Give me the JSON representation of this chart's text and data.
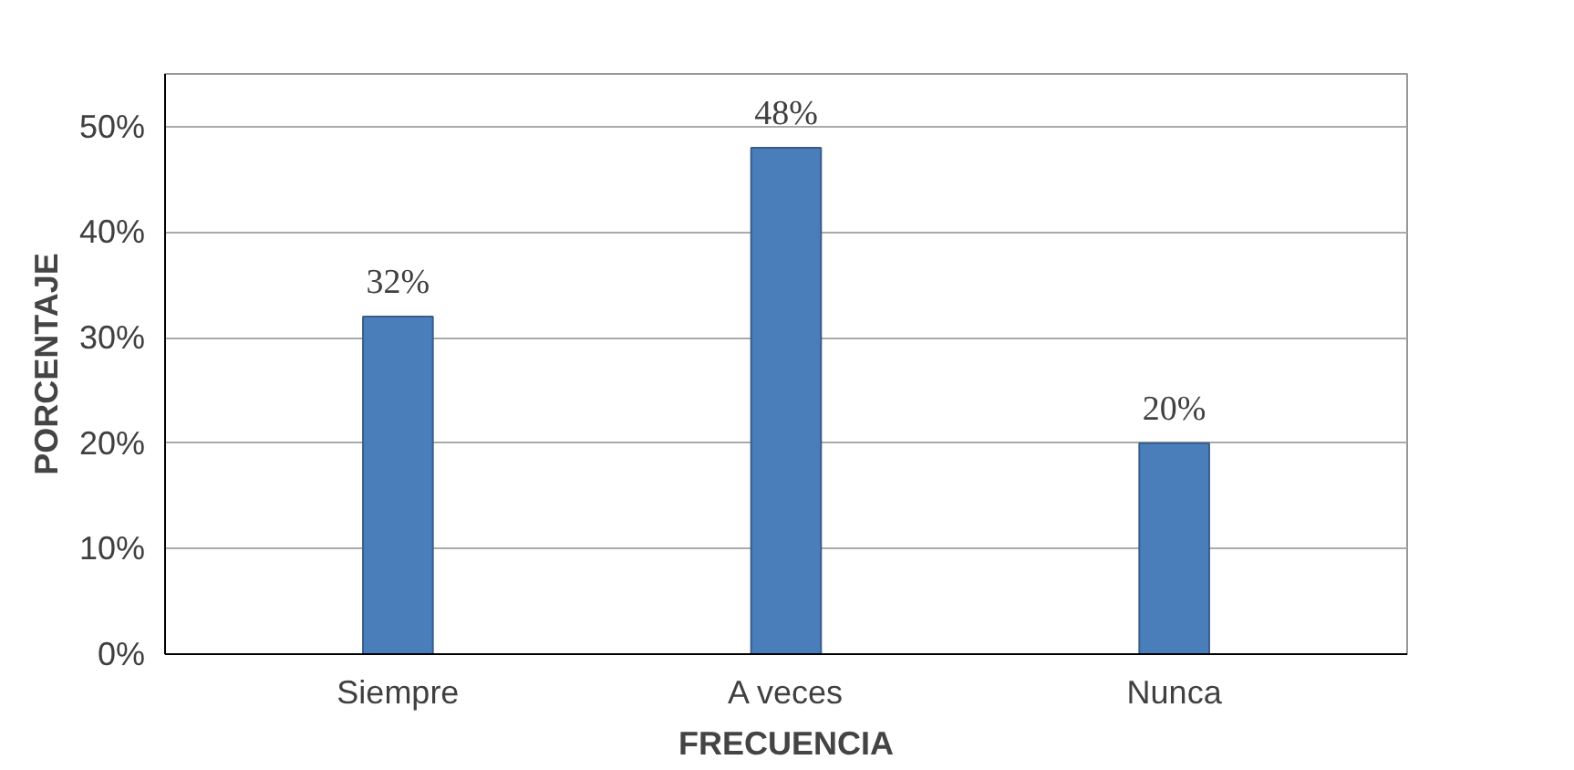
{
  "chart_data": {
    "type": "bar",
    "xlabel": "FRECUENCIA",
    "ylabel": "PORCENTAJE",
    "categories": [
      "Siempre",
      "A veces",
      "Nunca"
    ],
    "values": [
      32,
      48,
      20
    ],
    "value_labels": [
      "32%",
      "48%",
      "20%"
    ],
    "color": "#4a7ebb",
    "ylim": [
      0,
      55
    ],
    "yticks": [
      {
        "value": 0,
        "label": "0%"
      },
      {
        "value": 10,
        "label": "10%"
      },
      {
        "value": 20,
        "label": "20%"
      },
      {
        "value": 30,
        "label": "30%"
      },
      {
        "value": 40,
        "label": "40%"
      },
      {
        "value": 50,
        "label": "50%"
      }
    ],
    "grid": "y"
  }
}
